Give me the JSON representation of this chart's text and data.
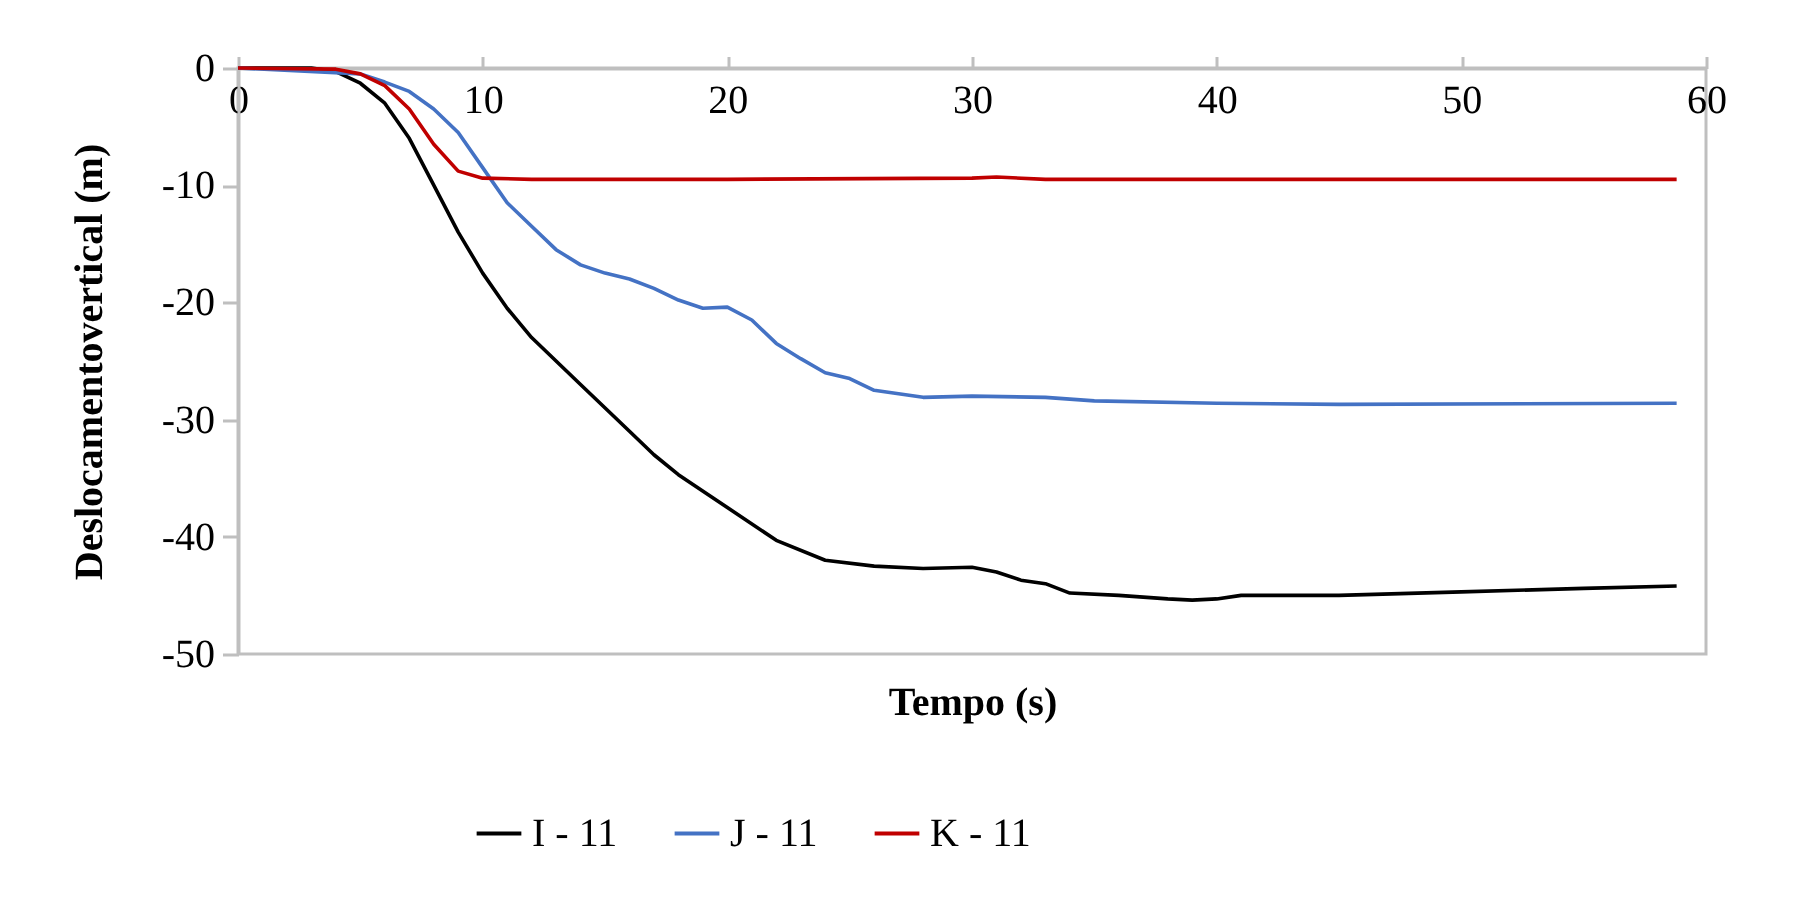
{
  "chart_data": {
    "type": "line",
    "xlabel": "Tempo (s)",
    "ylabel": "Deslocamentovertical (m)",
    "xlim": [
      0,
      60
    ],
    "xticks": [
      0,
      10,
      20,
      30,
      40,
      50,
      60
    ],
    "ylim": [
      -50,
      0
    ],
    "yticks": [
      -50,
      -40,
      -30,
      -20,
      -10,
      0
    ],
    "grid": false,
    "legend": "bottom",
    "marker": "none",
    "line_style": "solid",
    "series": [
      {
        "name": "I - 11",
        "color": "#000000",
        "x": [
          0,
          3,
          4,
          5,
          6,
          7,
          8,
          9,
          10,
          11,
          12,
          14,
          16,
          17,
          18,
          20,
          22,
          24,
          26,
          28,
          30,
          31,
          32,
          33,
          34,
          36,
          38,
          39,
          40,
          41,
          45,
          50,
          55,
          58.8
        ],
        "values": [
          0,
          0,
          -0.3,
          -1.3,
          -3,
          -6,
          -10,
          -14,
          -17.5,
          -20.5,
          -23,
          -27,
          -31,
          -33,
          -34.7,
          -37.5,
          -40.3,
          -42,
          -42.5,
          -42.7,
          -42.6,
          -43,
          -43.7,
          -44,
          -44.8,
          -45,
          -45.3,
          -45.4,
          -45.3,
          -45,
          -45,
          -44.7,
          -44.4,
          -44.2
        ]
      },
      {
        "name": "J - 11",
        "color": "#4472c4",
        "x": [
          0,
          5,
          6,
          7,
          8,
          9,
          10,
          11,
          12,
          13,
          14,
          15,
          16,
          17,
          18,
          19,
          20,
          21,
          22,
          23,
          24,
          25,
          26,
          27,
          28,
          30,
          33,
          35,
          40,
          45,
          58.8
        ],
        "values": [
          0,
          -0.5,
          -1.2,
          -2,
          -3.5,
          -5.5,
          -8.5,
          -11.5,
          -13.5,
          -15.5,
          -16.8,
          -17.5,
          -18,
          -18.8,
          -19.8,
          -20.5,
          -20.4,
          -21.5,
          -23.5,
          -24.8,
          -26,
          -26.5,
          -27.5,
          -27.8,
          -28.1,
          -28,
          -28.1,
          -28.4,
          -28.6,
          -28.7,
          -28.6
        ]
      },
      {
        "name": "K - 11",
        "color": "#c00000",
        "x": [
          0,
          4,
          5,
          6,
          7,
          8,
          9,
          10,
          12,
          20,
          30,
          31,
          33,
          58.8
        ],
        "values": [
          0,
          -0.1,
          -0.5,
          -1.5,
          -3.5,
          -6.5,
          -8.8,
          -9.4,
          -9.5,
          -9.5,
          -9.4,
          -9.3,
          -9.5,
          -9.5
        ]
      }
    ]
  }
}
